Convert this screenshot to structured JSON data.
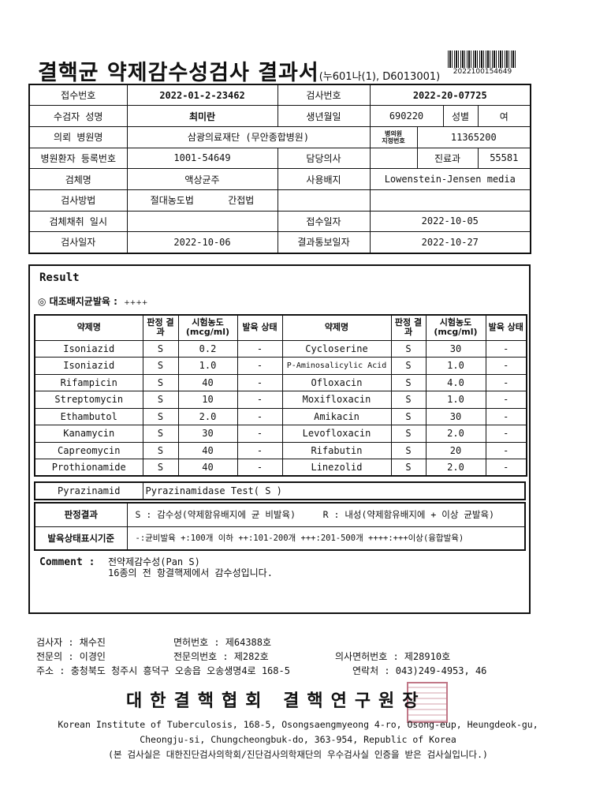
{
  "header": {
    "title": "결핵균 약제감수성검사 결과서",
    "code": "(누601나(1), D6013001)",
    "barcode_number": "2022100154649"
  },
  "info": {
    "reception_no_label": "접수번호",
    "reception_no": "2022-01-2-23462",
    "test_no_label": "검사번호",
    "test_no": "2022-20-07725",
    "patient_name_label": "수검자 성명",
    "patient_name": "최미란",
    "birth_label": "생년월일",
    "birth": "690220",
    "sex_label": "성별",
    "sex": "여",
    "hospital_label": "의뢰 병원명",
    "hospital": "삼광의료재단 (무안종합병원)",
    "hospital_code_label_1": "병의원",
    "hospital_code_label_2": "지정번호",
    "hospital_code": "11365200",
    "patient_reg_label": "병원환자 등록번호",
    "patient_reg": "1001-54649",
    "doctor_label": "담당의사",
    "doctor": "",
    "dept_label": "진료과",
    "dept": "55581",
    "specimen_label": "검체명",
    "specimen": "액상균주",
    "medium_label": "사용배지",
    "medium": "Lowenstein-Jensen media",
    "method_label": "검사방법",
    "method_1": "절대농도법",
    "method_2": "간접법",
    "collect_label": "검체채취 일시",
    "collect": "",
    "received_label": "접수일자",
    "received": "2022-10-05",
    "test_date_label": "검사일자",
    "test_date": "2022-10-06",
    "report_label": "결과통보일자",
    "report": "2022-10-27"
  },
  "result": {
    "title": "Result",
    "control_label": "◎ 대조배지균발육 :",
    "control_value": "++++",
    "headers": {
      "drug": "약제명",
      "judge": "판정 결과",
      "conc": "시험농도 (mcg/ml)",
      "growth": "발육 상태"
    },
    "rows": [
      [
        "Isoniazid",
        "S",
        "0.2",
        "-",
        "Cycloserine",
        "S",
        "30",
        "-"
      ],
      [
        "Isoniazid",
        "S",
        "1.0",
        "-",
        "P-Aminosalicylic Acid",
        "S",
        "1.0",
        "-"
      ],
      [
        "Rifampicin",
        "S",
        "40",
        "-",
        "Ofloxacin",
        "S",
        "4.0",
        "-"
      ],
      [
        "Streptomycin",
        "S",
        "10",
        "-",
        "Moxifloxacin",
        "S",
        "1.0",
        "-"
      ],
      [
        "Ethambutol",
        "S",
        "2.0",
        "-",
        "Amikacin",
        "S",
        "30",
        "-"
      ],
      [
        "Kanamycin",
        "S",
        "30",
        "-",
        "Levofloxacin",
        "S",
        "2.0",
        "-"
      ],
      [
        "Capreomycin",
        "S",
        "40",
        "-",
        "Rifabutin",
        "S",
        "20",
        "-"
      ],
      [
        "Prothionamide",
        "S",
        "40",
        "-",
        "Linezolid",
        "S",
        "2.0",
        "-"
      ]
    ],
    "pza_label": "Pyrazinamid",
    "pza_value": "Pyrazinamidase Test( S  )",
    "judge_label": "판정결과",
    "judge_s": "S : 감수성(약제함유배지에 균 비발육)",
    "judge_r": "R : 내성(약제함유배지에 + 이상 균발육)",
    "growth_label": "발육상태표시기준",
    "growth_text": "-:균비발육   +:100개 이하  ++:101-200개  +++:201-500개   ++++:+++이상(융합발육)",
    "comment_label": "Comment :",
    "comment_1": "전약제감수성(Pan S)",
    "comment_2": "16종의 전 항결핵제에서 감수성입니다."
  },
  "footer": {
    "tester": "검사자 :  채수진",
    "license_label": "면허번호  :  제64388호",
    "specialist": "전문의 :  이경인",
    "spec_no": "전문의번호 :  제282호",
    "doc_license": "의사면허번호 :  제28910호",
    "address": "주소 : 충청북도 청주시 흥덕구 오송읍 오송생명4로 168-5",
    "contact": "연락처 :  043)249-4953, 46",
    "org": "대한결핵협회  결핵연구원장",
    "en_1": "Korean Institute of Tuberculosis, 168-5, Osongsaengmyeong 4-ro, Osong-eup, Heungdeok-gu,",
    "en_2": "Cheongju-si, Chungcheongbuk-do, 363-954, Republic of Korea",
    "cert": "(본 검사실은 대한진단검사의학회/진단검사의학재단의 우수검사실 인증을 받은 검사실입니다.)",
    "stamp_color": "#b2566a"
  }
}
